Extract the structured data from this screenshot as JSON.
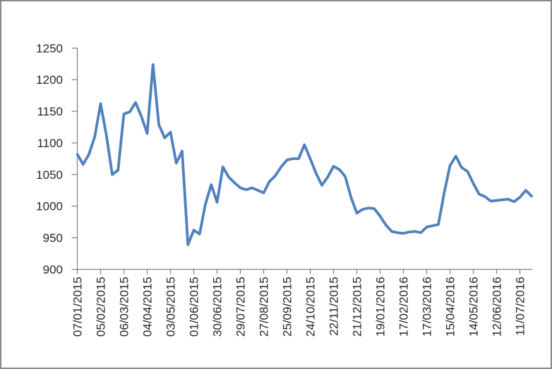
{
  "window": {
    "background": "#ffffff",
    "border_color": "#8a8a8a"
  },
  "chart_data": {
    "type": "line",
    "title": "",
    "legend": "none",
    "grid": false,
    "x_tick_labels": [
      "07/01/2015",
      "05/02/2015",
      "06/03/2015",
      "04/04/2015",
      "03/05/2015",
      "01/06/2015",
      "30/06/2015",
      "29/07/2015",
      "27/08/2015",
      "25/09/2015",
      "24/10/2015",
      "22/11/2015",
      "21/12/2015",
      "19/01/2016",
      "17/02/2016",
      "17/03/2016",
      "15/04/2016",
      "14/05/2016",
      "12/06/2016",
      "11/07/2016"
    ],
    "x_label_every_n_points": 4,
    "y_ticks": [
      1250,
      1200,
      1150,
      1100,
      1050,
      1000,
      950,
      900
    ],
    "y_axis_range": [
      900,
      1250
    ],
    "axis_color": "#7f7f7f",
    "series": [
      {
        "color": "#4F81BD",
        "values": [
          1082,
          1066,
          1082,
          1110,
          1162,
          1112,
          1050,
          1057,
          1146,
          1149,
          1164,
          1142,
          1115,
          1224,
          1129,
          1108,
          1117,
          1068,
          1087,
          939,
          962,
          956,
          1003,
          1034,
          1006,
          1062,
          1046,
          1037,
          1029,
          1026,
          1029,
          1025,
          1021,
          1039,
          1048,
          1062,
          1073,
          1075,
          1075,
          1097,
          1075,
          1052,
          1033,
          1046,
          1063,
          1058,
          1047,
          1014,
          989,
          995,
          997,
          996,
          984,
          970,
          960,
          958,
          957,
          959,
          960,
          958,
          967,
          969,
          971,
          1021,
          1064,
          1079,
          1061,
          1055,
          1036,
          1019,
          1015,
          1008,
          1009,
          1010,
          1011,
          1007,
          1014,
          1025,
          1016
        ]
      }
    ]
  }
}
